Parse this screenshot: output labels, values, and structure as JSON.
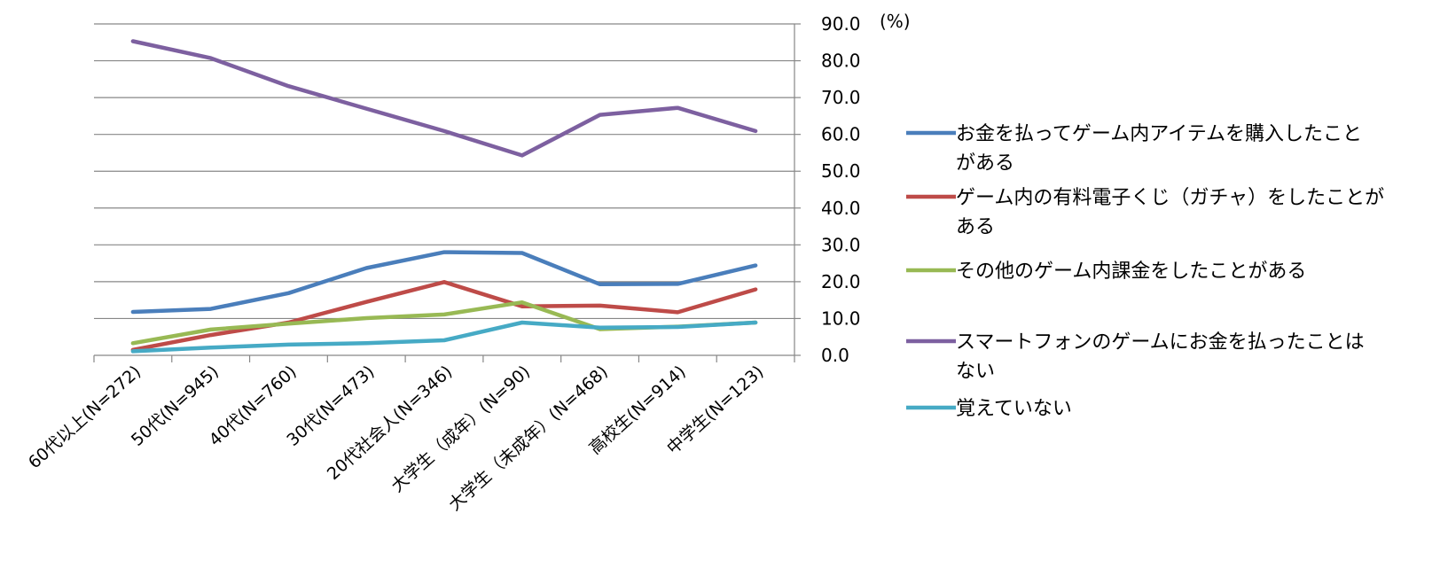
{
  "chart_data": {
    "type": "line",
    "unit_label": "(%)",
    "ylim": [
      0,
      90
    ],
    "y_ticks": [
      "0.0",
      "10.0",
      "20.0",
      "30.0",
      "40.0",
      "50.0",
      "60.0",
      "70.0",
      "80.0",
      "90.0"
    ],
    "y_axis_side": "right",
    "grid": true,
    "legend_position": "right",
    "categories": [
      "60代以上(N=272)",
      "50代(N=945)",
      "40代(N=760)",
      "30代(N=473)",
      "20代社会人(N=346)",
      "大学生（成年）(N=90)",
      "大学生（未成年）(N=468)",
      "高校生(N=914)",
      "中学生(N=123)"
    ],
    "series": [
      {
        "name": [
          "お金を払ってゲーム内アイテムを購入したこと",
          "がある"
        ],
        "color": "#4a7ebb",
        "values": [
          11.8,
          12.6,
          16.9,
          23.7,
          28.0,
          27.8,
          19.3,
          19.4,
          24.4
        ]
      },
      {
        "name": [
          "ゲーム内の有料電子くじ（ガチャ）をしたことが",
          "ある"
        ],
        "color": "#be4b48",
        "values": [
          1.5,
          5.5,
          8.9,
          14.5,
          19.9,
          13.3,
          13.5,
          11.7,
          17.9
        ]
      },
      {
        "name": [
          "その他のゲーム内課金をしたことがある"
        ],
        "color": "#98b954",
        "values": [
          3.3,
          7.0,
          8.6,
          10.1,
          11.1,
          14.4,
          7.1,
          7.8,
          8.9
        ]
      },
      {
        "name": [
          "スマートフォンのゲームにお金を払ったことは",
          "ない"
        ],
        "color": "#7d60a0",
        "values": [
          85.3,
          80.7,
          73.1,
          67.0,
          60.9,
          54.3,
          65.3,
          67.2,
          60.9
        ]
      },
      {
        "name": [
          "覚えていない"
        ],
        "color": "#46aac5",
        "values": [
          1.1,
          2.1,
          2.9,
          3.3,
          4.1,
          8.9,
          7.5,
          7.7,
          8.9
        ]
      }
    ]
  }
}
